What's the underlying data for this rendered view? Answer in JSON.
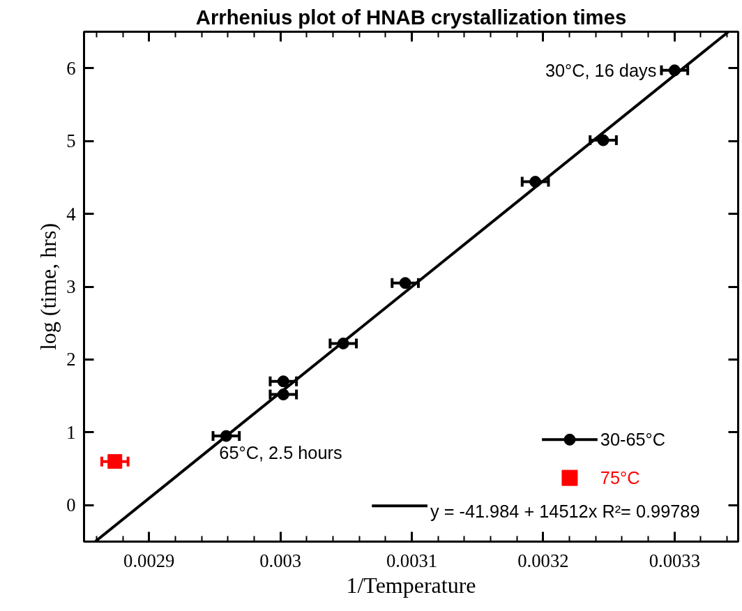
{
  "chart_data": {
    "type": "scatter",
    "title": "Arrhenius plot of HNAB crystallization times",
    "xlabel": "1/Temperature",
    "ylabel": "log (time, hrs)",
    "xlim": [
      0.0028505,
      0.0033484
    ],
    "ylim": [
      -0.5,
      6.5
    ],
    "xticks": [
      0.0029,
      0.003,
      0.0031,
      0.0032,
      0.0033
    ],
    "yticks": [
      0,
      1,
      2,
      3,
      4,
      5,
      6
    ],
    "grid": false,
    "legend": "bottom right",
    "series": [
      {
        "name": "30-65°C",
        "color": "#000000",
        "type": "scatter",
        "marker": "circle",
        "x": [
          0.0029587,
          0.0030022,
          0.0030022,
          0.0030478,
          0.003095,
          0.003194,
          0.0032457,
          0.0033
        ],
        "values": [
          0.95,
          1.52,
          1.7,
          2.22,
          3.05,
          4.44,
          5.01,
          5.97
        ],
        "xerrors": [
          1e-05,
          1e-05,
          1e-05,
          1e-05,
          1e-05,
          1e-05,
          1e-05,
          1e-05
        ]
      },
      {
        "name": "75°C",
        "color": "#ff0000",
        "type": "scatter",
        "marker": "square",
        "x": [
          0.002874
        ],
        "values": [
          0.6
        ],
        "xerrors": [
          1e-05
        ]
      },
      {
        "name": "y = -41.984 + 14512x   R²= 0.99789",
        "color": "#000000",
        "type": "line",
        "marker": "none",
        "x": [
          0.002859,
          0.003341
        ],
        "values": [
          -0.5,
          6.5
        ]
      }
    ],
    "annotations": [
      {
        "text": "30°C, 16 days",
        "x": 0.0033,
        "y": 5.97
      },
      {
        "text": "65°C, 2.5 hours",
        "x": 0.0029587,
        "y": 0.95
      }
    ]
  }
}
